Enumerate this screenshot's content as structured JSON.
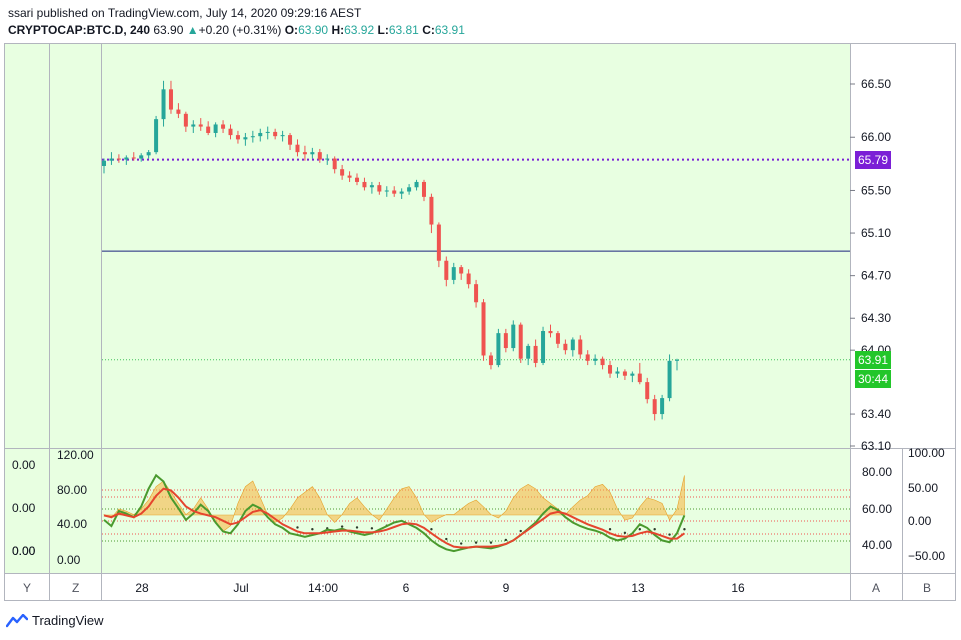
{
  "header": {
    "published": "ssari published on TradingView.com, July 14, 2020 09:29:16 AEST",
    "symbol": "CRYPTOCAP:BTC.D, 240",
    "last": "63.90",
    "change_arrow": "▲",
    "change": "+0.20 (+0.31%)",
    "o_label": "O:",
    "o_value": "63.90",
    "h_label": "H:",
    "h_value": "63.92",
    "l_label": "L:",
    "l_value": "63.81",
    "c_label": "C:",
    "c_value": "63.91"
  },
  "colors": {
    "chart_bg": "#e8ffe1",
    "up": "#26a69a",
    "down": "#ef5350",
    "purple_line": "#7b1fd6",
    "navy_line": "#1a237e",
    "price_chip": "#22c62a",
    "stoch_fill": "#f7b23c",
    "green_osc": "#4a9a2e",
    "red_osc": "#e5452e"
  },
  "chart_data": [
    {
      "type": "candlestick",
      "name": "main",
      "x_ticks": [
        "28",
        "Jul",
        "14:00",
        "6",
        "9",
        "13",
        "16"
      ],
      "y_ticks": [
        "66.50",
        "66.00",
        "65.50",
        "65.10",
        "64.70",
        "64.30",
        "64.00",
        "63.40",
        "63.10"
      ],
      "ylim": [
        63.1,
        66.65
      ],
      "last_price_label": "63.91",
      "countdown_label": "30:44",
      "level_label": "65.79",
      "level_value": 65.79,
      "navy_level": 64.93,
      "candles": [
        [
          65.73,
          65.8,
          65.66,
          65.78
        ],
        [
          65.78,
          65.86,
          65.74,
          65.8
        ],
        [
          65.8,
          65.84,
          65.76,
          65.79
        ],
        [
          65.79,
          65.83,
          65.74,
          65.81
        ],
        [
          65.81,
          65.86,
          65.78,
          65.8
        ],
        [
          65.8,
          65.85,
          65.77,
          65.83
        ],
        [
          65.83,
          65.88,
          65.8,
          65.86
        ],
        [
          65.86,
          66.2,
          65.84,
          66.17
        ],
        [
          66.17,
          66.53,
          66.1,
          66.45
        ],
        [
          66.45,
          66.53,
          66.22,
          66.26
        ],
        [
          66.26,
          66.32,
          66.18,
          66.22
        ],
        [
          66.22,
          66.24,
          66.05,
          66.1
        ],
        [
          66.1,
          66.16,
          66.04,
          66.12
        ],
        [
          66.12,
          66.18,
          66.06,
          66.1
        ],
        [
          66.1,
          66.15,
          66.02,
          66.04
        ],
        [
          66.04,
          66.14,
          66.0,
          66.12
        ],
        [
          66.12,
          66.16,
          66.04,
          66.08
        ],
        [
          66.08,
          66.12,
          65.98,
          66.02
        ],
        [
          66.02,
          66.06,
          65.94,
          65.98
        ],
        [
          65.98,
          66.04,
          65.92,
          66.0
        ],
        [
          66.0,
          66.06,
          65.95,
          66.01
        ],
        [
          66.01,
          66.08,
          65.96,
          66.04
        ],
        [
          66.04,
          66.1,
          65.98,
          66.05
        ],
        [
          66.05,
          66.08,
          65.98,
          66.01
        ],
        [
          66.01,
          66.06,
          65.96,
          66.02
        ],
        [
          66.02,
          66.04,
          65.88,
          65.93
        ],
        [
          65.93,
          65.98,
          65.82,
          65.86
        ],
        [
          65.86,
          65.92,
          65.78,
          65.84
        ],
        [
          65.84,
          65.9,
          65.8,
          65.86
        ],
        [
          65.86,
          65.89,
          65.76,
          65.79
        ],
        [
          65.79,
          65.84,
          65.74,
          65.8
        ],
        [
          65.8,
          65.82,
          65.66,
          65.7
        ],
        [
          65.7,
          65.74,
          65.6,
          65.64
        ],
        [
          65.64,
          65.68,
          65.58,
          65.62
        ],
        [
          65.62,
          65.66,
          65.55,
          65.58
        ],
        [
          65.58,
          65.62,
          65.5,
          65.53
        ],
        [
          65.53,
          65.58,
          65.47,
          65.55
        ],
        [
          65.55,
          65.58,
          65.46,
          65.49
        ],
        [
          65.49,
          65.54,
          65.44,
          65.5
        ],
        [
          65.5,
          65.54,
          65.44,
          65.47
        ],
        [
          65.47,
          65.52,
          65.42,
          65.49
        ],
        [
          65.49,
          65.56,
          65.46,
          65.53
        ],
        [
          65.53,
          65.6,
          65.5,
          65.58
        ],
        [
          65.58,
          65.6,
          65.4,
          65.44
        ],
        [
          65.44,
          65.47,
          65.1,
          65.18
        ],
        [
          65.18,
          65.2,
          64.78,
          64.84
        ],
        [
          64.84,
          64.88,
          64.6,
          64.66
        ],
        [
          64.66,
          64.82,
          64.62,
          64.78
        ],
        [
          64.78,
          64.8,
          64.66,
          64.72
        ],
        [
          64.72,
          64.76,
          64.58,
          64.62
        ],
        [
          64.62,
          64.66,
          64.4,
          64.45
        ],
        [
          64.45,
          64.48,
          63.9,
          63.95
        ],
        [
          63.95,
          63.98,
          63.82,
          63.86
        ],
        [
          63.86,
          64.2,
          63.84,
          64.16
        ],
        [
          64.16,
          64.2,
          63.98,
          64.02
        ],
        [
          64.02,
          64.28,
          63.99,
          64.24
        ],
        [
          64.24,
          64.26,
          63.88,
          63.92
        ],
        [
          63.92,
          64.06,
          63.86,
          64.04
        ],
        [
          64.04,
          64.1,
          63.84,
          63.88
        ],
        [
          63.88,
          64.22,
          63.86,
          64.18
        ],
        [
          64.18,
          64.24,
          64.12,
          64.16
        ],
        [
          64.16,
          64.18,
          64.02,
          64.06
        ],
        [
          64.06,
          64.1,
          63.96,
          64.0
        ],
        [
          64.0,
          64.12,
          63.94,
          64.1
        ],
        [
          64.1,
          64.14,
          63.92,
          63.96
        ],
        [
          63.96,
          64.0,
          63.86,
          63.9
        ],
        [
          63.9,
          63.96,
          63.86,
          63.92
        ],
        [
          63.92,
          63.94,
          63.82,
          63.86
        ],
        [
          63.86,
          63.9,
          63.74,
          63.78
        ],
        [
          63.78,
          63.84,
          63.74,
          63.8
        ],
        [
          63.8,
          63.82,
          63.72,
          63.76
        ],
        [
          63.76,
          63.8,
          63.7,
          63.78
        ],
        [
          63.78,
          63.88,
          63.68,
          63.7
        ],
        [
          63.7,
          63.74,
          63.5,
          63.54
        ],
        [
          63.54,
          63.58,
          63.34,
          63.4
        ],
        [
          63.4,
          63.58,
          63.35,
          63.55
        ],
        [
          63.55,
          63.96,
          63.52,
          63.9
        ],
        [
          63.9,
          63.92,
          63.81,
          63.91
        ]
      ]
    },
    {
      "type": "line",
      "name": "oscillator",
      "left_ticks": [
        "0.00",
        "0.00",
        "0.00",
        "0.00"
      ],
      "left_ticks2": [
        "120.00",
        "80.00",
        "40.00",
        "0.00"
      ],
      "right_ticks": [
        "80.00",
        "60.00",
        "40.00"
      ],
      "far_right_ticks": [
        "100.00",
        "50.00",
        "0.00",
        "−50.00"
      ],
      "ylim": [
        0,
        120
      ],
      "series": [
        {
          "values": [
            45,
            38,
            55,
            52,
            48,
            60,
            80,
            95,
            88,
            70,
            58,
            45,
            52,
            62,
            55,
            42,
            32,
            30,
            40,
            55,
            62,
            58,
            48,
            40,
            36,
            30,
            28,
            26,
            28,
            30,
            34,
            33,
            35,
            32,
            30,
            28,
            30,
            34,
            38,
            42,
            44,
            40,
            36,
            30,
            22,
            16,
            12,
            10,
            12,
            14,
            15,
            14,
            13,
            15,
            18,
            22,
            28,
            35,
            42,
            52,
            60,
            56,
            48,
            42,
            38,
            35,
            33,
            30,
            25,
            22,
            24,
            30,
            40,
            36,
            28,
            22,
            20,
            30,
            50
          ]
        },
        {
          "values": [
            50,
            48,
            52,
            50,
            48,
            52,
            60,
            72,
            80,
            78,
            70,
            60,
            55,
            52,
            50,
            48,
            44,
            40,
            42,
            48,
            54,
            56,
            52,
            46,
            40,
            36,
            32,
            30,
            30,
            30,
            31,
            32,
            33,
            33,
            32,
            31,
            31,
            32,
            34,
            37,
            40,
            41,
            40,
            36,
            30,
            24,
            19,
            15,
            14,
            14,
            15,
            15,
            15,
            16,
            18,
            22,
            28,
            34,
            40,
            46,
            52,
            54,
            52,
            48,
            44,
            40,
            37,
            34,
            30,
            27,
            26,
            27,
            30,
            32,
            30,
            27,
            24,
            24,
            30
          ]
        },
        {
          "values": [
            0.55,
            0.58,
            0.5,
            0.52,
            0.55,
            0.5,
            0.42,
            0.3,
            0.25,
            0.35,
            0.45,
            0.55,
            0.5,
            0.4,
            0.5,
            0.62,
            0.7,
            0.65,
            0.45,
            0.3,
            0.25,
            0.4,
            0.55,
            0.62,
            0.58,
            0.5,
            0.4,
            0.35,
            0.3,
            0.4,
            0.55,
            0.62,
            0.55,
            0.45,
            0.4,
            0.48,
            0.55,
            0.6,
            0.5,
            0.4,
            0.32,
            0.3,
            0.4,
            0.55,
            0.62,
            0.58,
            0.55,
            0.55,
            0.5,
            0.45,
            0.42,
            0.48,
            0.55,
            0.58,
            0.52,
            0.4,
            0.32,
            0.28,
            0.32,
            0.4,
            0.45,
            0.5,
            0.55,
            0.48,
            0.42,
            0.38,
            0.3,
            0.28,
            0.35,
            0.5,
            0.6,
            0.58,
            0.48,
            0.4,
            0.42,
            0.45,
            0.6,
            0.5,
            0.2
          ]
        }
      ]
    }
  ],
  "scale_buttons": [
    "Y",
    "Z",
    "A",
    "B"
  ],
  "brand": "TradingView"
}
